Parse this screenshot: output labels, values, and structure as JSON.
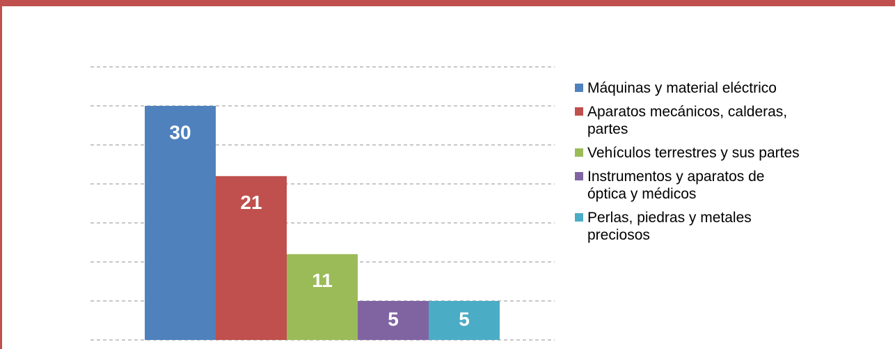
{
  "chart_data": {
    "type": "bar",
    "series": [
      {
        "name": "Máquinas y material eléctrico",
        "color": "#4f81bd",
        "values": [
          30
        ]
      },
      {
        "name": "Aparatos mecánicos, calderas, partes",
        "color": "#c0504d",
        "values": [
          21
        ]
      },
      {
        "name": "Vehículos terrestres y sus partes",
        "color": "#9bbb59",
        "values": [
          11
        ]
      },
      {
        "name": "Instrumentos y aparatos de óptica y médicos",
        "color": "#8064a2",
        "values": [
          5
        ]
      },
      {
        "name": "Perlas, piedras y metales preciosos",
        "color": "#4bacc6",
        "values": [
          5
        ]
      }
    ],
    "ylim": [
      0,
      35
    ],
    "yticks": [
      0,
      5,
      10,
      15,
      20,
      25,
      30,
      35
    ],
    "grid": true,
    "legend": "right"
  }
}
